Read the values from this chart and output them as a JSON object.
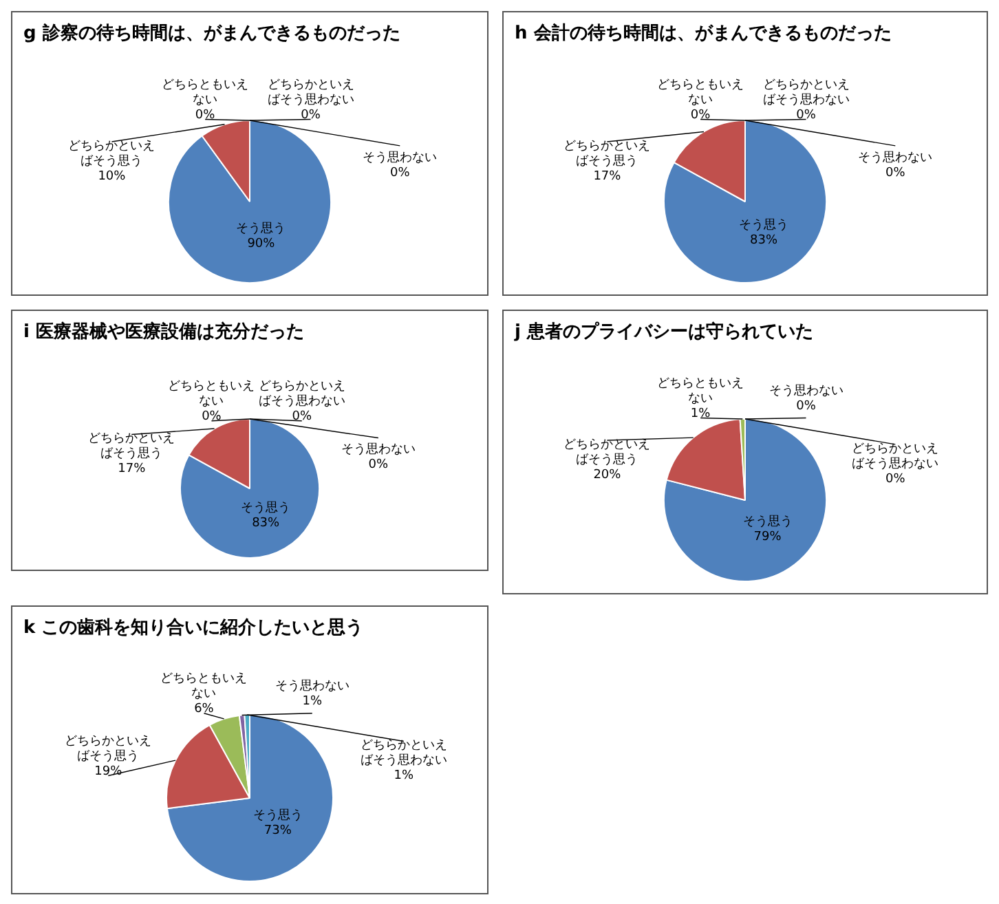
{
  "chart_data": [
    {
      "type": "pie",
      "title": "g 診察の待ち時間は、がまんできるものだった",
      "categories": [
        "そう思う",
        "どちらかといえばそう思う",
        "どちらともいえない",
        "どちらかといえばそう思わない",
        "そう思わない"
      ],
      "values": [
        90,
        10,
        0,
        0,
        0
      ],
      "value_labels": [
        "90%",
        "10%",
        "0%",
        "0%",
        "0%"
      ],
      "colors": [
        "#4f81bd",
        "#c0504d",
        "#9bbb59",
        "#8064a2",
        "#4bacc6"
      ]
    },
    {
      "type": "pie",
      "title": "h 会計の待ち時間は、がまんできるものだった",
      "categories": [
        "そう思う",
        "どちらかといえばそう思う",
        "どちらともいえない",
        "どちらかといえばそう思わない",
        "そう思わない"
      ],
      "values": [
        83,
        17,
        0,
        0,
        0
      ],
      "value_labels": [
        "83%",
        "17%",
        "0%",
        "0%",
        "0%"
      ],
      "colors": [
        "#4f81bd",
        "#c0504d",
        "#9bbb59",
        "#8064a2",
        "#4bacc6"
      ]
    },
    {
      "type": "pie",
      "title": "i 医療器械や医療設備は充分だった",
      "categories": [
        "そう思う",
        "どちらかといえばそう思う",
        "どちらともいえない",
        "どちらかといえばそう思わない",
        "そう思わない"
      ],
      "values": [
        83,
        17,
        0,
        0,
        0
      ],
      "value_labels": [
        "83%",
        "17%",
        "0%",
        "0%",
        "0%"
      ],
      "colors": [
        "#4f81bd",
        "#c0504d",
        "#9bbb59",
        "#8064a2",
        "#4bacc6"
      ]
    },
    {
      "type": "pie",
      "title": "j 患者のプライバシーは守られていた",
      "categories": [
        "そう思う",
        "どちらかといえばそう思う",
        "どちらともいえない",
        "そう思わない",
        "どちらかといえばそう思わない"
      ],
      "values": [
        79,
        20,
        1,
        0,
        0
      ],
      "value_labels": [
        "79%",
        "20%",
        "1%",
        "0%",
        "0%"
      ],
      "colors": [
        "#4f81bd",
        "#c0504d",
        "#9bbb59",
        "#8064a2",
        "#4bacc6"
      ]
    },
    {
      "type": "pie",
      "title": "k この歯科を知り合いに紹介したいと思う",
      "categories": [
        "そう思う",
        "どちらかといえばそう思う",
        "どちらともいえない",
        "そう思わない",
        "どちらかといえばそう思わない"
      ],
      "values": [
        73,
        19,
        6,
        1,
        1
      ],
      "value_labels": [
        "73%",
        "19%",
        "6%",
        "1%",
        "1%"
      ],
      "colors": [
        "#4f81bd",
        "#c0504d",
        "#9bbb59",
        "#8064a2",
        "#4bacc6"
      ]
    }
  ]
}
